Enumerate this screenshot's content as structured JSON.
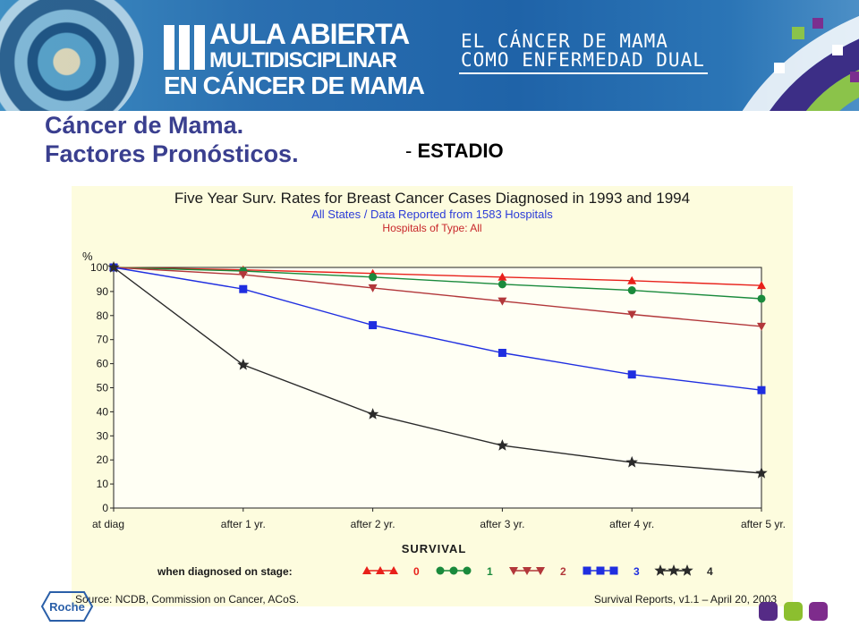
{
  "header": {
    "logo_line1": "AULA ABIERTA",
    "logo_line2": "MULTIDISCIPLINAR",
    "logo_line3": "EN CÁNCER DE MAMA",
    "event_line1": "EL CÁNCER DE MAMA",
    "event_line2": "COMO ENFERMEDAD DUAL"
  },
  "slide": {
    "title_line1": "Cáncer de Mama.",
    "title_line2": "Factores Pronósticos.",
    "subtitle_dash": "- ",
    "subtitle": "ESTADIO"
  },
  "chart_data": {
    "type": "line",
    "title": "Five Year Surv. Rates for Breast Cancer Cases Diagnosed in 1993 and 1994",
    "subtitle1": "All States / Data Reported from 1583 Hospitals",
    "subtitle2": "Hospitals of Type: All",
    "ylabel": "%",
    "xlabel": "SURVIVAL",
    "ylim": [
      0,
      100
    ],
    "yticks": [
      0,
      10,
      20,
      30,
      40,
      50,
      60,
      70,
      80,
      90,
      100
    ],
    "categories": [
      "at diag",
      "after 1 yr.",
      "after 2 yr.",
      "after 3 yr.",
      "after 4 yr.",
      "after 5 yr."
    ],
    "grid": true,
    "legend_title": "when diagnosed on stage:",
    "legend_position": "bottom",
    "series": [
      {
        "name": "0",
        "color": "#e8201a",
        "marker": "triangle-up",
        "values": [
          100,
          99,
          97.5,
          96,
          94.5,
          92.5
        ]
      },
      {
        "name": "1",
        "color": "#1a8a3c",
        "marker": "circle",
        "values": [
          100,
          98.5,
          96,
          93,
          90.5,
          87
        ]
      },
      {
        "name": "2",
        "color": "#b2373a",
        "marker": "triangle-down",
        "values": [
          100,
          97,
          91.5,
          86,
          80.5,
          75.5
        ]
      },
      {
        "name": "3",
        "color": "#1f2ee0",
        "marker": "square",
        "values": [
          100,
          91,
          76,
          64.5,
          55.5,
          49
        ]
      },
      {
        "name": "4",
        "color": "#2a2a2a",
        "marker": "star",
        "values": [
          100,
          59.5,
          39,
          26,
          19,
          14.5
        ]
      }
    ],
    "source": "Source: NCDB, Commission on Cancer, ACoS.",
    "report": "Survival Reports, v1.1 – April 20, 2003"
  },
  "footer": {
    "roche_logo_text": "Roche",
    "square_colors": [
      "#552b86",
      "#8cbf2f",
      "#7e2c8c"
    ]
  }
}
